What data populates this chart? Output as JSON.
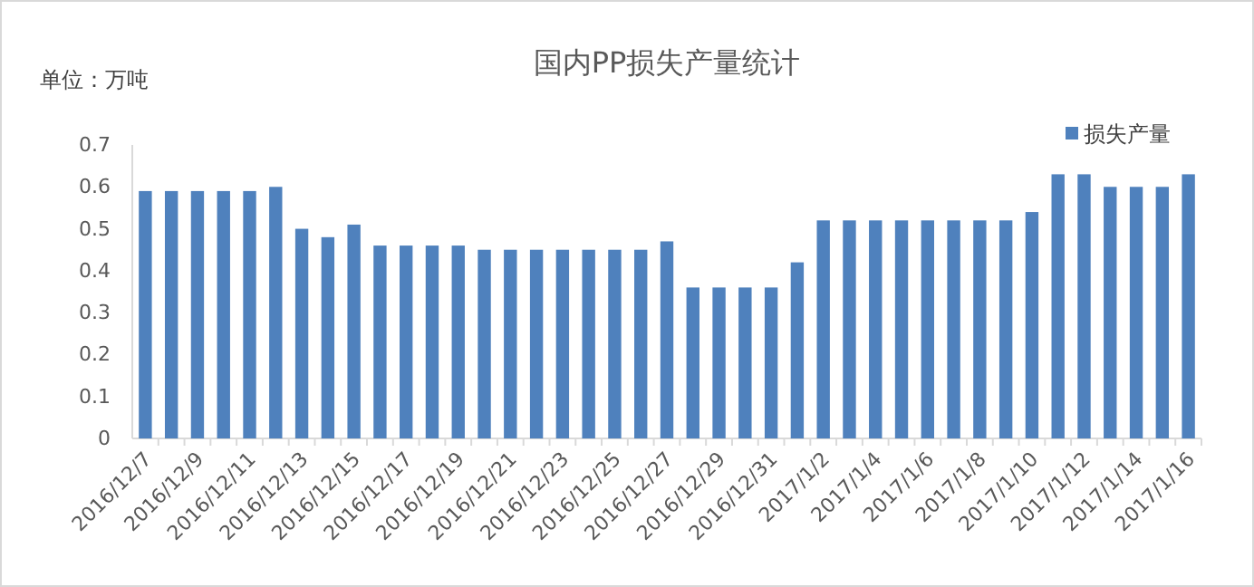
{
  "chart_data": {
    "type": "bar",
    "title": "国内PP损失产量统计",
    "ylabel": "单位：万吨",
    "categories": [
      "2016/12/7",
      null,
      "2016/12/9",
      null,
      "2016/12/11",
      null,
      "2016/12/13",
      null,
      "2016/12/15",
      null,
      "2016/12/17",
      null,
      "2016/12/19",
      null,
      "2016/12/21",
      null,
      "2016/12/23",
      null,
      "2016/12/25",
      null,
      "2016/12/27",
      null,
      "2016/12/29",
      null,
      "2016/12/31",
      null,
      "2017/1/2",
      null,
      "2017/1/4",
      null,
      "2017/1/6",
      null,
      "2017/1/8",
      null,
      "2017/1/10",
      null,
      "2017/1/12",
      null,
      "2017/1/14",
      null,
      "2017/1/16"
    ],
    "series": [
      {
        "name": "损失产量",
        "color": "#4f81bd",
        "values": [
          0.59,
          0.59,
          0.59,
          0.59,
          0.59,
          0.6,
          0.5,
          0.48,
          0.51,
          0.46,
          0.46,
          0.46,
          0.46,
          0.45,
          0.45,
          0.45,
          0.45,
          0.45,
          0.45,
          0.45,
          0.47,
          0.36,
          0.36,
          0.36,
          0.36,
          0.42,
          0.52,
          0.52,
          0.52,
          0.52,
          0.52,
          0.52,
          0.52,
          0.52,
          0.54,
          0.63,
          0.63,
          0.6,
          0.6,
          0.6,
          0.63
        ]
      }
    ],
    "ylim": [
      0,
      0.7
    ],
    "yticks": [
      0,
      0.1,
      0.2,
      0.3,
      0.4,
      0.5,
      0.6,
      0.7
    ],
    "legend": "top right"
  }
}
